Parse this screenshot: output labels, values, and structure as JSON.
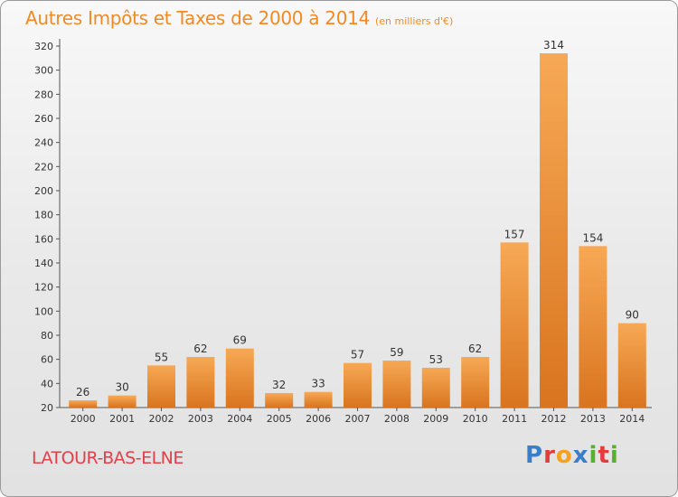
{
  "header": {
    "title": "Autres Impôts et Taxes de 2000 à 2014",
    "unit": "(en milliers d'€)"
  },
  "footer": {
    "commune": "LATOUR-BAS-ELNE",
    "logo_text": "Proxiti",
    "logo_colors": [
      "#3a7dc9",
      "#e23c3c",
      "#f6a21d",
      "#3a7dc9",
      "#58b030",
      "#e23c3c",
      "#58b030"
    ]
  },
  "colors": {
    "title": "#f08a24",
    "bar_light": "#f7a955",
    "bar_dark": "#d9741f",
    "commune": "#e2404a"
  },
  "chart_data": {
    "type": "bar",
    "title": "Autres Impôts et Taxes de 2000 à 2014",
    "subtitle": "(en milliers d'€)",
    "categories": [
      "2000",
      "2001",
      "2002",
      "2003",
      "2004",
      "2005",
      "2006",
      "2007",
      "2008",
      "2009",
      "2010",
      "2011",
      "2012",
      "2013",
      "2014"
    ],
    "values": [
      26,
      30,
      55,
      62,
      69,
      32,
      33,
      57,
      59,
      53,
      62,
      157,
      314,
      154,
      90
    ],
    "ylim": [
      20,
      320
    ],
    "yticks": [
      20,
      40,
      60,
      80,
      100,
      120,
      140,
      160,
      180,
      200,
      220,
      240,
      260,
      280,
      300,
      320
    ],
    "grid": false,
    "legend": "none"
  }
}
